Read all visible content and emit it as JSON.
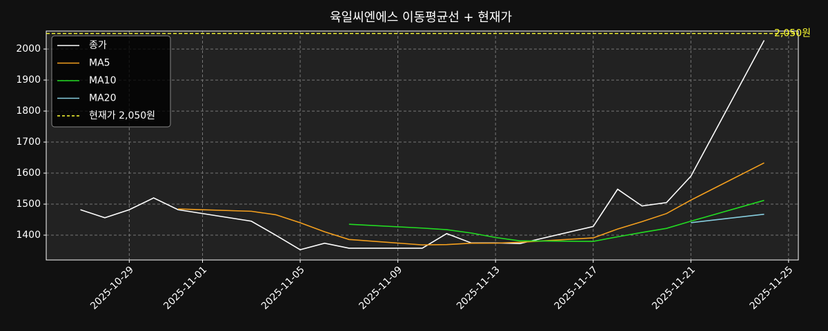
{
  "chart_data": {
    "type": "line",
    "title": "육일씨엔에스 이동평균선 + 현재가",
    "x": [
      "2025-10-27",
      "2025-10-28",
      "2025-10-29",
      "2025-10-30",
      "2025-10-31",
      "2025-11-03",
      "2025-11-04",
      "2025-11-05",
      "2025-11-06",
      "2025-11-07",
      "2025-11-10",
      "2025-11-11",
      "2025-11-12",
      "2025-11-13",
      "2025-11-14",
      "2025-11-17",
      "2025-11-18",
      "2025-11-19",
      "2025-11-20",
      "2025-11-21",
      "2025-11-24"
    ],
    "series": [
      {
        "name": "종가",
        "color": "#ffffff",
        "values": [
          1482,
          1456,
          1482,
          1520,
          1482,
          1445,
          1400,
          1353,
          1374,
          1358,
          1358,
          1405,
          1375,
          1375,
          1373,
          1428,
          1548,
          1494,
          1505,
          1590,
          2028
        ]
      },
      {
        "name": "MA5",
        "color": "#f5a01e",
        "values": [
          null,
          null,
          null,
          null,
          1484.4,
          1477,
          1465.8,
          1440,
          1410.8,
          1386,
          1368.6,
          1369.6,
          1374,
          1374.2,
          1377.2,
          1391.2,
          1419.8,
          1443.6,
          1469.6,
          1513,
          1633
        ]
      },
      {
        "name": "MA10",
        "color": "#22dd22",
        "values": [
          null,
          null,
          null,
          null,
          null,
          null,
          null,
          null,
          null,
          1435.2,
          1422.8,
          1417.7,
          1407,
          1392.5,
          1381.6,
          1379.9,
          1394.7,
          1408.8,
          1421.9,
          1445.1,
          1512.1
        ]
      },
      {
        "name": "MA20",
        "color": "#87cedf",
        "values": [
          null,
          null,
          null,
          null,
          null,
          null,
          null,
          null,
          null,
          null,
          null,
          null,
          null,
          null,
          null,
          null,
          null,
          null,
          null,
          1440.2,
          1467.5
        ]
      }
    ],
    "hline": {
      "value": 2050,
      "label": "2,050원",
      "name": "현재가 2,050원",
      "color": "#ffff33"
    },
    "xlim": [
      "2025-10-25T14:24",
      "2025-11-25T09:36"
    ],
    "xticks": [
      "2025-10-29",
      "2025-11-01",
      "2025-11-05",
      "2025-11-09",
      "2025-11-13",
      "2025-11-17",
      "2025-11-21",
      "2025-11-25"
    ],
    "ylim": [
      1320,
      2058
    ],
    "yticks": [
      1400,
      1500,
      1600,
      1700,
      1800,
      1900,
      2000
    ],
    "grid": true,
    "legend": "upper left"
  }
}
